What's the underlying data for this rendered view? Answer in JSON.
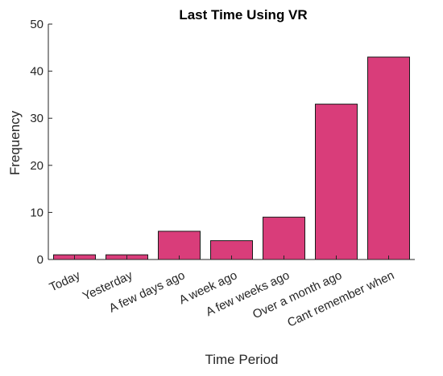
{
  "chart_data": {
    "type": "bar",
    "title": "Last Time Using VR",
    "xlabel": "Time Period",
    "ylabel": "Frequency",
    "categories": [
      "Today",
      "Yesterday",
      "A few days ago",
      "A week ago",
      "A few weeks ago",
      "Over a month ago",
      "Cant remember when"
    ],
    "values": [
      1,
      1,
      6,
      4,
      9,
      33,
      43
    ],
    "ylim": [
      0,
      50
    ],
    "yticks": [
      0,
      10,
      20,
      30,
      40,
      50
    ],
    "grid": false,
    "legend": "none",
    "bar_color": "#d93d7a",
    "bar_edge_color": "#1a1a1a",
    "axis_color": "#262626"
  }
}
